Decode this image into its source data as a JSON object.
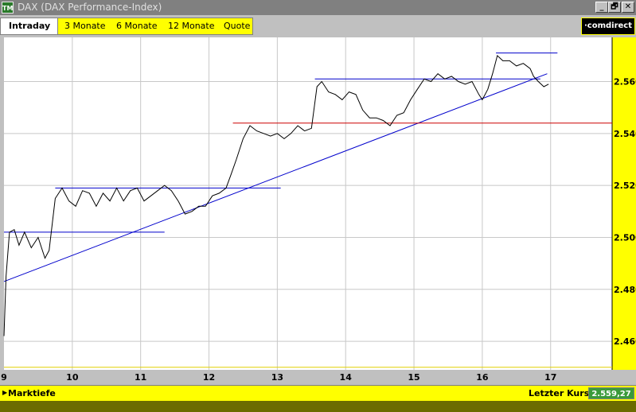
{
  "window": {
    "icon_text": "TM",
    "title": "DAX (DAX Performance-Index)",
    "buttons": [
      "_",
      "🗗",
      "✕"
    ]
  },
  "tabs": [
    {
      "label": "Intraday",
      "active": true
    },
    {
      "label": "3 Monate",
      "active": false
    },
    {
      "label": "6 Monate",
      "active": false
    },
    {
      "label": "12 Monate",
      "active": false
    },
    {
      "label": "Quote",
      "active": false
    }
  ],
  "brand": "·comdirect",
  "status": {
    "left_label": "Marktiefe",
    "right_label": "Letzter Kurs",
    "last_price": "2.559,27"
  },
  "chart_data": {
    "type": "line",
    "x_ticks": [
      "9",
      "10",
      "11",
      "12",
      "13",
      "14",
      "15",
      "16",
      "17"
    ],
    "y_ticks": [
      "2.460",
      "2.480",
      "2.500",
      "2.520",
      "2.540",
      "2.560"
    ],
    "ylim": [
      2449,
      2577
    ],
    "xlim": [
      9,
      17.9
    ],
    "grid": true,
    "series": [
      {
        "color": "#000000",
        "points": [
          [
            9.0,
            2462
          ],
          [
            9.03,
            2485
          ],
          [
            9.08,
            2502
          ],
          [
            9.15,
            2503
          ],
          [
            9.22,
            2497
          ],
          [
            9.3,
            2502
          ],
          [
            9.4,
            2496
          ],
          [
            9.5,
            2500
          ],
          [
            9.6,
            2492
          ],
          [
            9.66,
            2495
          ],
          [
            9.75,
            2515
          ],
          [
            9.85,
            2519
          ],
          [
            9.95,
            2514
          ],
          [
            10.05,
            2512
          ],
          [
            10.15,
            2518
          ],
          [
            10.25,
            2517
          ],
          [
            10.35,
            2512
          ],
          [
            10.45,
            2517
          ],
          [
            10.55,
            2514
          ],
          [
            10.65,
            2519
          ],
          [
            10.75,
            2514
          ],
          [
            10.85,
            2518
          ],
          [
            10.95,
            2519
          ],
          [
            11.05,
            2514
          ],
          [
            11.15,
            2516
          ],
          [
            11.25,
            2518
          ],
          [
            11.35,
            2520
          ],
          [
            11.45,
            2518
          ],
          [
            11.55,
            2514
          ],
          [
            11.65,
            2509
          ],
          [
            11.75,
            2510
          ],
          [
            11.85,
            2512
          ],
          [
            11.95,
            2512
          ],
          [
            12.05,
            2516
          ],
          [
            12.15,
            2517
          ],
          [
            12.25,
            2519
          ],
          [
            12.32,
            2524
          ],
          [
            12.4,
            2530
          ],
          [
            12.5,
            2538
          ],
          [
            12.6,
            2543
          ],
          [
            12.7,
            2541
          ],
          [
            12.8,
            2540
          ],
          [
            12.9,
            2539
          ],
          [
            13.0,
            2540
          ],
          [
            13.1,
            2538
          ],
          [
            13.2,
            2540
          ],
          [
            13.3,
            2543
          ],
          [
            13.4,
            2541
          ],
          [
            13.5,
            2542
          ],
          [
            13.58,
            2558
          ],
          [
            13.65,
            2560
          ],
          [
            13.75,
            2556
          ],
          [
            13.85,
            2555
          ],
          [
            13.95,
            2553
          ],
          [
            14.05,
            2556
          ],
          [
            14.15,
            2555
          ],
          [
            14.25,
            2549
          ],
          [
            14.35,
            2546
          ],
          [
            14.45,
            2546
          ],
          [
            14.55,
            2545
          ],
          [
            14.65,
            2543
          ],
          [
            14.75,
            2547
          ],
          [
            14.85,
            2548
          ],
          [
            14.95,
            2553
          ],
          [
            15.05,
            2557
          ],
          [
            15.15,
            2561
          ],
          [
            15.25,
            2560
          ],
          [
            15.35,
            2563
          ],
          [
            15.45,
            2561
          ],
          [
            15.55,
            2562
          ],
          [
            15.65,
            2560
          ],
          [
            15.75,
            2559
          ],
          [
            15.85,
            2560
          ],
          [
            15.95,
            2555
          ],
          [
            16.0,
            2553
          ],
          [
            16.08,
            2557
          ],
          [
            16.15,
            2563
          ],
          [
            16.22,
            2570
          ],
          [
            16.3,
            2568
          ],
          [
            16.4,
            2568
          ],
          [
            16.5,
            2566
          ],
          [
            16.6,
            2567
          ],
          [
            16.7,
            2565
          ],
          [
            16.75,
            2562
          ],
          [
            16.82,
            2560
          ],
          [
            16.9,
            2558
          ],
          [
            16.97,
            2559
          ]
        ]
      }
    ],
    "reference_lines": [
      {
        "color": "#0000cc",
        "from": [
          9.0,
          2483
        ],
        "to": [
          16.95,
          2563
        ]
      },
      {
        "color": "#0000cc",
        "from": [
          9.0,
          2502
        ],
        "to": [
          11.35,
          2502
        ]
      },
      {
        "color": "#0000cc",
        "from": [
          9.75,
          2519
        ],
        "to": [
          13.05,
          2519
        ]
      },
      {
        "color": "#0000cc",
        "from": [
          13.55,
          2561
        ],
        "to": [
          16.85,
          2561
        ]
      },
      {
        "color": "#0000cc",
        "from": [
          16.2,
          2571
        ],
        "to": [
          17.1,
          2571
        ]
      },
      {
        "color": "#cc0000",
        "from": [
          12.35,
          2544
        ],
        "to": [
          17.9,
          2544
        ]
      },
      {
        "color": "#e0d000",
        "from": [
          9.0,
          2450
        ],
        "to": [
          17.9,
          2450
        ]
      }
    ]
  }
}
